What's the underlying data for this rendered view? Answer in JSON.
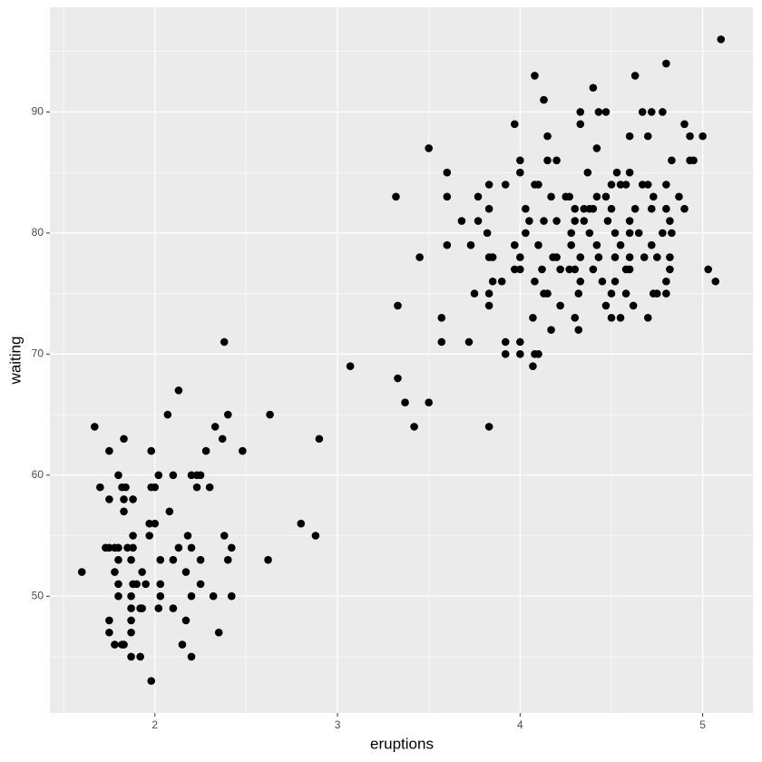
{
  "chart_data": {
    "type": "scatter",
    "x_label": "eruptions",
    "y_label": "waiting",
    "color": "#000000",
    "panel_color": "#ebebeb",
    "grid": true,
    "xlim": [
      1.425,
      5.275
    ],
    "ylim": [
      40.35,
      98.65
    ],
    "xticks": [
      2,
      3,
      4,
      5
    ],
    "yticks": [
      50,
      60,
      70,
      80,
      90
    ],
    "xminor": [
      1.5,
      2.5,
      3.5,
      4.5
    ],
    "yminor": [
      45,
      55,
      65,
      75,
      85,
      95
    ],
    "x": [
      1.6,
      1.67,
      1.7,
      1.73,
      1.75,
      1.75,
      1.75,
      1.75,
      1.75,
      1.78,
      1.78,
      1.8,
      1.78,
      1.8,
      1.82,
      1.83,
      1.8,
      1.8,
      1.82,
      1.8,
      1.83,
      1.83,
      1.84,
      1.83,
      1.85,
      1.87,
      1.87,
      1.87,
      1.87,
      1.87,
      1.87,
      1.88,
      1.88,
      1.88,
      1.88,
      1.9,
      1.92,
      1.92,
      1.93,
      1.93,
      1.95,
      1.98,
      1.98,
      2.0,
      1.97,
      1.97,
      2.0,
      2.02,
      2.03,
      2.03,
      2.02,
      1.98,
      2.03,
      2.07,
      2.08,
      2.1,
      2.1,
      2.1,
      2.13,
      2.13,
      2.15,
      2.17,
      2.17,
      2.18,
      2.2,
      2.2,
      2.2,
      2.23,
      2.2,
      2.23,
      2.25,
      2.25,
      2.25,
      2.28,
      2.3,
      2.32,
      2.33,
      2.35,
      2.37,
      2.38,
      2.38,
      2.4,
      2.4,
      2.42,
      2.42,
      2.48,
      2.62,
      2.63,
      2.8,
      2.88,
      2.9,
      3.07,
      3.32,
      3.33,
      3.33,
      3.37,
      3.42,
      3.45,
      3.5,
      3.5,
      3.57,
      3.57,
      3.6,
      3.6,
      3.6,
      3.68,
      3.72,
      3.73,
      3.75,
      3.77,
      3.77,
      3.82,
      3.83,
      3.83,
      3.85,
      3.83,
      3.83,
      3.83,
      3.83,
      3.85,
      3.92,
      3.9,
      3.92,
      3.92,
      3.97,
      3.97,
      3.97,
      4.0,
      4.0,
      4.0,
      4.0,
      4.0,
      4.0,
      4.03,
      4.03,
      4.05,
      4.07,
      4.07,
      4.08,
      4.08,
      4.08,
      4.1,
      4.1,
      4.08,
      4.1,
      4.13,
      4.12,
      4.13,
      4.13,
      4.15,
      4.15,
      4.15,
      4.17,
      4.17,
      4.18,
      4.2,
      4.2,
      4.2,
      4.22,
      4.22,
      4.25,
      4.27,
      4.27,
      4.28,
      4.28,
      4.3,
      4.3,
      4.3,
      4.3,
      4.32,
      4.32,
      4.33,
      4.33,
      4.33,
      4.33,
      4.35,
      4.35,
      4.37,
      4.38,
      4.38,
      4.4,
      4.4,
      4.4,
      4.42,
      4.42,
      4.42,
      4.43,
      4.43,
      4.45,
      4.47,
      4.47,
      4.47,
      4.48,
      4.5,
      4.5,
      4.5,
      4.5,
      4.52,
      4.52,
      4.52,
      4.53,
      4.55,
      4.55,
      4.55,
      4.58,
      4.58,
      4.58,
      4.6,
      4.6,
      4.6,
      4.6,
      4.6,
      4.6,
      4.62,
      4.63,
      4.63,
      4.65,
      4.67,
      4.67,
      4.68,
      4.7,
      4.7,
      4.7,
      4.72,
      4.72,
      4.72,
      4.73,
      4.73,
      4.75,
      4.75,
      4.78,
      4.78,
      4.8,
      4.8,
      4.8,
      4.8,
      4.8,
      4.82,
      4.82,
      4.82,
      4.83,
      4.83,
      4.87,
      4.9,
      4.9,
      4.93,
      4.93,
      4.95,
      5.0,
      5.03,
      5.07,
      5.1
    ],
    "values": [
      52,
      64,
      59,
      54,
      54,
      62,
      58,
      48,
      47,
      54,
      52,
      50,
      46,
      53,
      46,
      46,
      54,
      60,
      59,
      51,
      63,
      57,
      59,
      58,
      54,
      53,
      47,
      49,
      45,
      48,
      50,
      51,
      55,
      58,
      54,
      51,
      49,
      45,
      52,
      49,
      51,
      62,
      59,
      59,
      56,
      55,
      56,
      60,
      53,
      50,
      49,
      43,
      51,
      65,
      57,
      60,
      53,
      49,
      67,
      54,
      46,
      48,
      52,
      55,
      60,
      45,
      54,
      60,
      50,
      59,
      60,
      51,
      53,
      62,
      59,
      50,
      64,
      47,
      63,
      71,
      55,
      53,
      65,
      50,
      54,
      62,
      53,
      65,
      56,
      55,
      63,
      69,
      83,
      74,
      68,
      66,
      64,
      78,
      87,
      66,
      73,
      71,
      85,
      83,
      79,
      81,
      71,
      79,
      75,
      83,
      81,
      80,
      84,
      82,
      76,
      78,
      75,
      74,
      64,
      78,
      84,
      76,
      71,
      70,
      89,
      79,
      77,
      86,
      85,
      78,
      77,
      71,
      70,
      82,
      80,
      81,
      73,
      69,
      76,
      84,
      93,
      84,
      70,
      70,
      79,
      81,
      77,
      75,
      91,
      86,
      88,
      75,
      72,
      83,
      78,
      86,
      81,
      78,
      77,
      74,
      83,
      83,
      77,
      79,
      80,
      82,
      81,
      77,
      73,
      72,
      75,
      76,
      78,
      89,
      90,
      81,
      82,
      85,
      82,
      80,
      92,
      77,
      82,
      87,
      83,
      79,
      78,
      90,
      76,
      90,
      83,
      74,
      81,
      75,
      84,
      82,
      73,
      80,
      76,
      78,
      85,
      73,
      84,
      79,
      77,
      84,
      75,
      85,
      81,
      80,
      78,
      77,
      88,
      74,
      93,
      82,
      80,
      84,
      90,
      78,
      88,
      84,
      73,
      79,
      90,
      82,
      75,
      83,
      75,
      78,
      90,
      80,
      76,
      75,
      94,
      84,
      82,
      78,
      77,
      81,
      80,
      86,
      83,
      82,
      89,
      88,
      86,
      86,
      88,
      77,
      76,
      96
    ]
  }
}
